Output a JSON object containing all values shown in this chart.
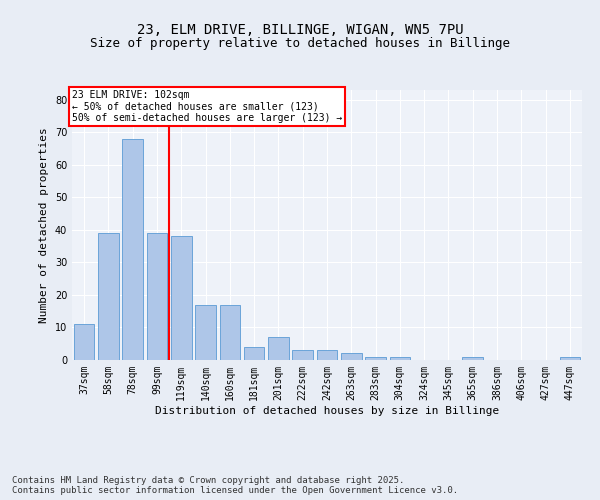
{
  "title": "23, ELM DRIVE, BILLINGE, WIGAN, WN5 7PU",
  "subtitle": "Size of property relative to detached houses in Billinge",
  "xlabel": "Distribution of detached houses by size in Billinge",
  "ylabel": "Number of detached properties",
  "categories": [
    "37sqm",
    "58sqm",
    "78sqm",
    "99sqm",
    "119sqm",
    "140sqm",
    "160sqm",
    "181sqm",
    "201sqm",
    "222sqm",
    "242sqm",
    "263sqm",
    "283sqm",
    "304sqm",
    "324sqm",
    "345sqm",
    "365sqm",
    "386sqm",
    "406sqm",
    "427sqm",
    "447sqm"
  ],
  "values": [
    11,
    39,
    68,
    39,
    38,
    17,
    17,
    4,
    7,
    3,
    3,
    2,
    1,
    1,
    0,
    0,
    1,
    0,
    0,
    0,
    1
  ],
  "bar_color": "#aec6e8",
  "bar_edge_color": "#5b9bd5",
  "vline_x": 3.5,
  "vline_color": "red",
  "annotation_text": "23 ELM DRIVE: 102sqm\n← 50% of detached houses are smaller (123)\n50% of semi-detached houses are larger (123) →",
  "annotation_box_color": "white",
  "annotation_box_edge_color": "red",
  "ylim": [
    0,
    83
  ],
  "yticks": [
    0,
    10,
    20,
    30,
    40,
    50,
    60,
    70,
    80
  ],
  "footer_text": "Contains HM Land Registry data © Crown copyright and database right 2025.\nContains public sector information licensed under the Open Government Licence v3.0.",
  "bg_color": "#e8edf5",
  "plot_bg_color": "#eef2f9",
  "grid_color": "white",
  "title_fontsize": 10,
  "subtitle_fontsize": 9,
  "axis_label_fontsize": 8,
  "tick_fontsize": 7,
  "footer_fontsize": 6.5
}
